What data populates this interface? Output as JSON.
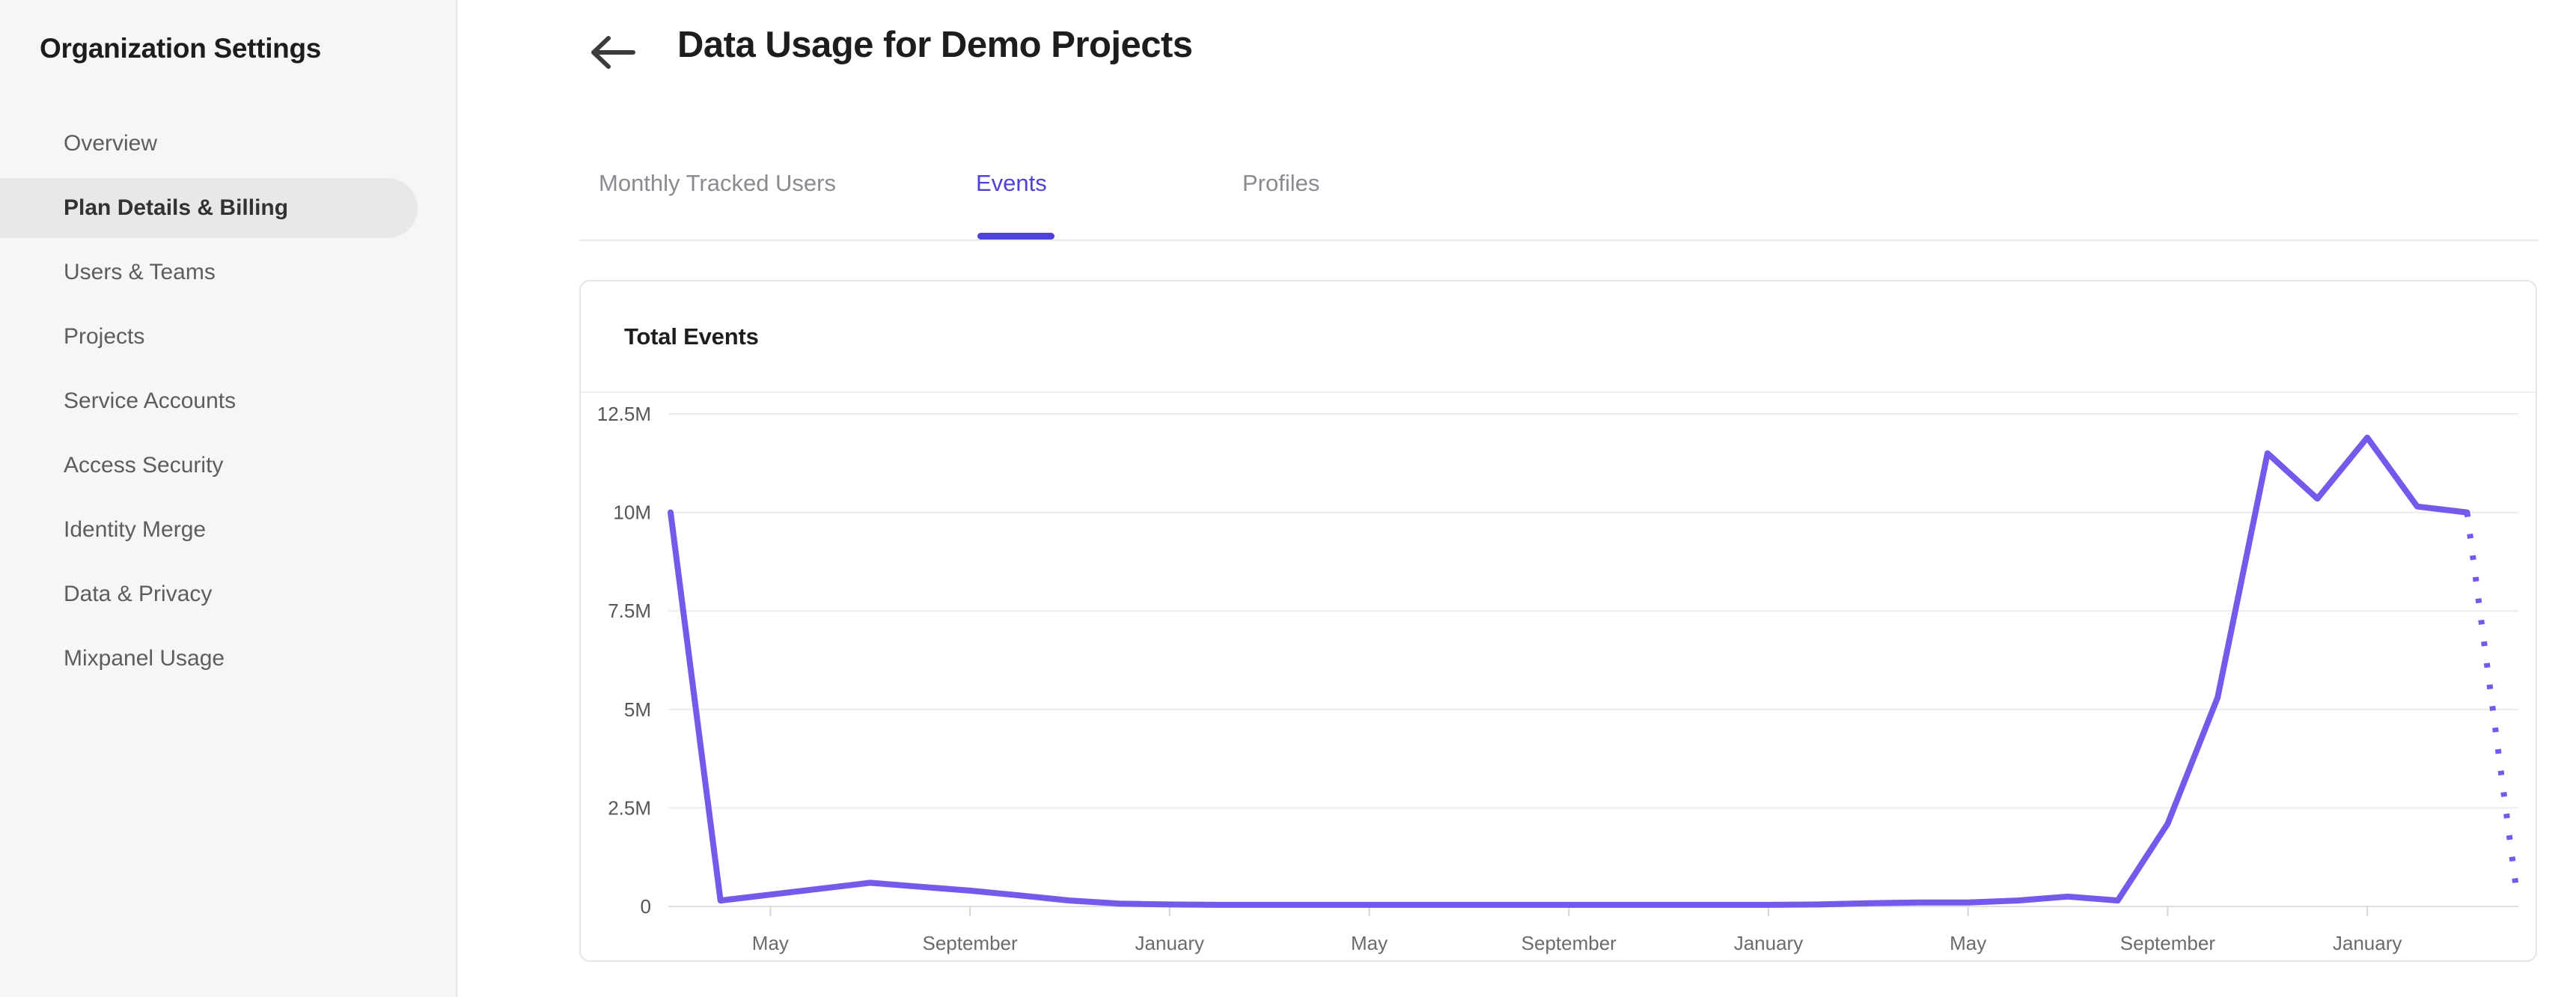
{
  "sidebar": {
    "title": "Organization Settings",
    "items": [
      {
        "label": "Overview",
        "selected": false
      },
      {
        "label": "Plan Details & Billing",
        "selected": true
      },
      {
        "label": "Users & Teams",
        "selected": false
      },
      {
        "label": "Projects",
        "selected": false
      },
      {
        "label": "Service Accounts",
        "selected": false
      },
      {
        "label": "Access Security",
        "selected": false
      },
      {
        "label": "Identity Merge",
        "selected": false
      },
      {
        "label": "Data & Privacy",
        "selected": false
      },
      {
        "label": "Mixpanel Usage",
        "selected": false
      }
    ]
  },
  "header": {
    "back_icon": "left-arrow",
    "title": "Data Usage for Demo Projects"
  },
  "tabs": {
    "items": [
      {
        "label": "Monthly Tracked Users",
        "active": false
      },
      {
        "label": "Events",
        "active": true
      },
      {
        "label": "Profiles",
        "active": false
      }
    ]
  },
  "card": {
    "title": "Total Events"
  },
  "chart_data": {
    "type": "line",
    "title": "Total Events",
    "legend": "none",
    "grid": "horizontal-only",
    "ylim_millions": [
      0,
      12.5
    ],
    "y_tick_labels": [
      "12.5M",
      "10M",
      "7.5M",
      "5M",
      "2.5M",
      "0"
    ],
    "y_tick_values_millions": [
      12.5,
      10,
      7.5,
      5,
      2.5,
      0
    ],
    "x_tick_labels": [
      "May",
      "September",
      "January",
      "May",
      "September",
      "January",
      "May",
      "September",
      "January"
    ],
    "x_tick_month_indices": [
      2,
      6,
      10,
      14,
      18,
      22,
      26,
      30,
      34
    ],
    "x_months": [
      "Y1 Mar",
      "Y1 Apr",
      "Y1 May",
      "Y1 Jun",
      "Y1 Jul",
      "Y1 Aug",
      "Y1 Sep",
      "Y1 Oct",
      "Y1 Nov",
      "Y1 Dec",
      "Y2 Jan",
      "Y2 Feb",
      "Y2 Mar",
      "Y2 Apr",
      "Y2 May",
      "Y2 Jun",
      "Y2 Jul",
      "Y2 Aug",
      "Y2 Sep",
      "Y2 Oct",
      "Y2 Nov",
      "Y2 Dec",
      "Y3 Jan",
      "Y3 Feb",
      "Y3 Mar",
      "Y3 Apr",
      "Y3 May",
      "Y3 Jun",
      "Y3 Jul",
      "Y3 Aug",
      "Y3 Sep",
      "Y3 Oct",
      "Y3 Nov",
      "Y3 Dec",
      "Y4 Jan",
      "Y4 Feb",
      "Y4 Mar",
      "Y4 Apr"
    ],
    "values_millions": [
      10,
      0.15,
      0.3,
      0.45,
      0.6,
      0.5,
      0.4,
      0.28,
      0.15,
      0.07,
      0.05,
      0.04,
      0.04,
      0.04,
      0.04,
      0.04,
      0.04,
      0.04,
      0.04,
      0.04,
      0.04,
      0.04,
      0.04,
      0.05,
      0.08,
      0.1,
      0.1,
      0.15,
      0.25,
      0.15,
      2.1,
      5.3,
      11.5,
      10.35,
      11.9,
      10.15,
      10.0,
      0.3
    ],
    "last_point_projected_dotted": true,
    "line_color": "#7459EB"
  },
  "colors": {
    "accent": "#4F42DA",
    "chart_line": "#7459EB",
    "sidebar_bg": "#F6F6F7",
    "selected_pill_bg": "#E8E8E9",
    "card_border": "#E4E4E7",
    "grid_line": "#EBEBEE",
    "axis_line": "#DFDFE2",
    "text_primary": "#1D1D20",
    "text_sidebar": "#5D5D60",
    "tab_inactive": "#8A8A90",
    "axis_label": "#6B6B6E"
  }
}
